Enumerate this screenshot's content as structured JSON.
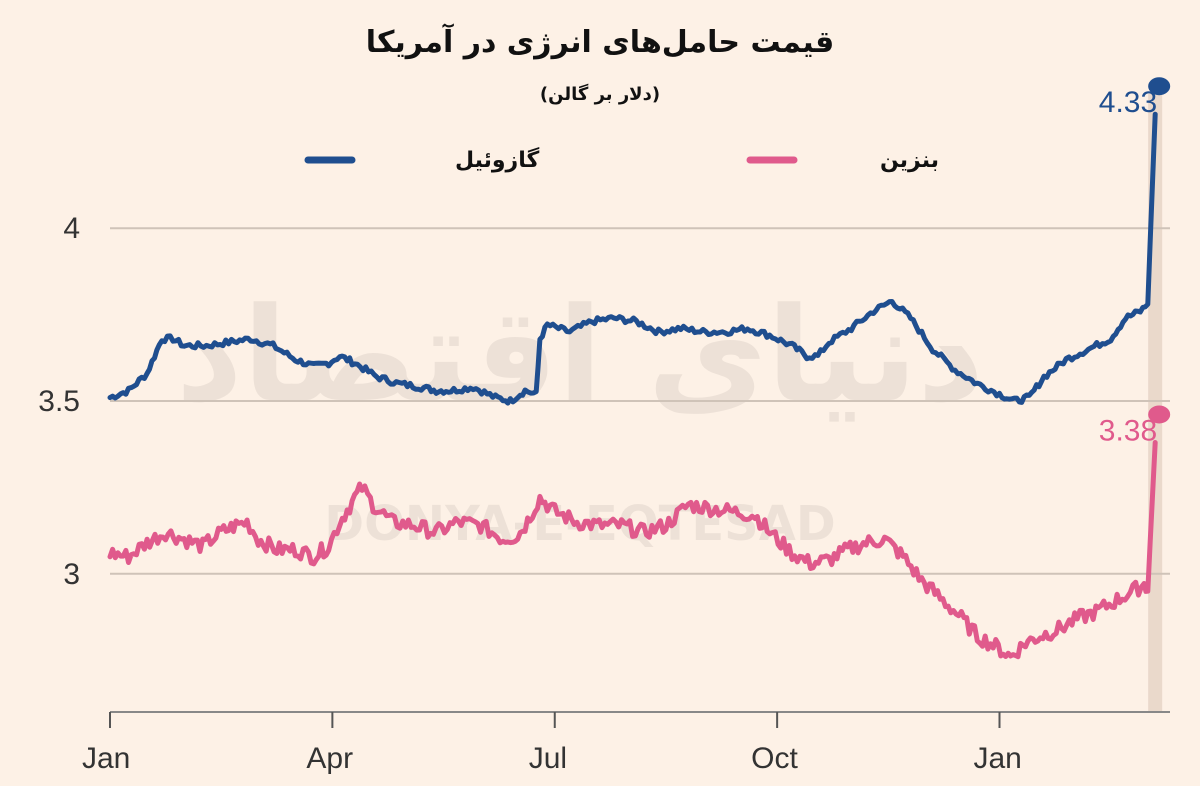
{
  "chart_data": {
    "type": "line",
    "title": "قیمت حامل‌های انرژی در آمریکا",
    "subtitle": "(دلار بر گالن)",
    "ylim": [
      2.6,
      4.4
    ],
    "y_ticks": [
      {
        "value": 3,
        "label": "3"
      },
      {
        "value": 3.5,
        "label": "3.5"
      },
      {
        "value": 4,
        "label": "4"
      }
    ],
    "x_ticks": [
      {
        "value": 0,
        "label": "Jan"
      },
      {
        "value": 3,
        "label": "Apr"
      },
      {
        "value": 6,
        "label": "Jul"
      },
      {
        "value": 9,
        "label": "Oct"
      },
      {
        "value": 12,
        "label": "Jan"
      }
    ],
    "xlim": [
      0,
      14.3
    ],
    "highlight_x": 14.1,
    "legend_position": "top",
    "grid": true,
    "series": [
      {
        "name": "گازوئیل",
        "color": "#1f4e8f",
        "end_label": "4.33",
        "points": [
          [
            0.0,
            3.51
          ],
          [
            0.25,
            3.53
          ],
          [
            0.5,
            3.58
          ],
          [
            0.7,
            3.68
          ],
          [
            0.85,
            3.68
          ],
          [
            1.0,
            3.66
          ],
          [
            1.3,
            3.66
          ],
          [
            1.6,
            3.67
          ],
          [
            1.9,
            3.68
          ],
          [
            2.2,
            3.66
          ],
          [
            2.5,
            3.62
          ],
          [
            2.75,
            3.6
          ],
          [
            2.95,
            3.61
          ],
          [
            3.1,
            3.63
          ],
          [
            3.3,
            3.61
          ],
          [
            3.6,
            3.57
          ],
          [
            3.9,
            3.55
          ],
          [
            4.2,
            3.54
          ],
          [
            4.4,
            3.53
          ],
          [
            4.6,
            3.53
          ],
          [
            4.9,
            3.54
          ],
          [
            5.2,
            3.51
          ],
          [
            5.4,
            3.5
          ],
          [
            5.6,
            3.53
          ],
          [
            5.75,
            3.52
          ],
          [
            5.8,
            3.68
          ],
          [
            5.9,
            3.72
          ],
          [
            6.2,
            3.7
          ],
          [
            6.5,
            3.73
          ],
          [
            6.8,
            3.74
          ],
          [
            7.1,
            3.73
          ],
          [
            7.4,
            3.7
          ],
          [
            7.7,
            3.71
          ],
          [
            8.0,
            3.7
          ],
          [
            8.3,
            3.7
          ],
          [
            8.6,
            3.71
          ],
          [
            8.9,
            3.69
          ],
          [
            9.2,
            3.66
          ],
          [
            9.4,
            3.63
          ],
          [
            9.55,
            3.63
          ],
          [
            9.7,
            3.67
          ],
          [
            10.0,
            3.71
          ],
          [
            10.3,
            3.76
          ],
          [
            10.55,
            3.79
          ],
          [
            10.8,
            3.74
          ],
          [
            11.1,
            3.65
          ],
          [
            11.4,
            3.59
          ],
          [
            11.7,
            3.55
          ],
          [
            12.0,
            3.52
          ],
          [
            12.2,
            3.5
          ],
          [
            12.4,
            3.51
          ],
          [
            12.6,
            3.57
          ],
          [
            12.9,
            3.62
          ],
          [
            13.2,
            3.65
          ],
          [
            13.5,
            3.68
          ],
          [
            13.7,
            3.74
          ],
          [
            13.9,
            3.76
          ],
          [
            14.0,
            3.78
          ],
          [
            14.1,
            4.33
          ]
        ]
      },
      {
        "name": "بنزین",
        "color": "#e05a8c",
        "end_label": "3.38",
        "points": [
          [
            0.0,
            3.06
          ],
          [
            0.25,
            3.05
          ],
          [
            0.5,
            3.09
          ],
          [
            0.75,
            3.12
          ],
          [
            1.0,
            3.1
          ],
          [
            1.25,
            3.08
          ],
          [
            1.5,
            3.12
          ],
          [
            1.7,
            3.14
          ],
          [
            1.85,
            3.15
          ],
          [
            2.0,
            3.1
          ],
          [
            2.25,
            3.07
          ],
          [
            2.5,
            3.07
          ],
          [
            2.75,
            3.05
          ],
          [
            2.95,
            3.08
          ],
          [
            3.1,
            3.15
          ],
          [
            3.3,
            3.22
          ],
          [
            3.4,
            3.25
          ],
          [
            3.55,
            3.2
          ],
          [
            3.8,
            3.15
          ],
          [
            4.1,
            3.14
          ],
          [
            4.4,
            3.12
          ],
          [
            4.7,
            3.15
          ],
          [
            5.0,
            3.14
          ],
          [
            5.3,
            3.1
          ],
          [
            5.5,
            3.11
          ],
          [
            5.6,
            3.14
          ],
          [
            5.8,
            3.22
          ],
          [
            6.0,
            3.18
          ],
          [
            6.3,
            3.15
          ],
          [
            6.6,
            3.14
          ],
          [
            6.9,
            3.14
          ],
          [
            7.2,
            3.12
          ],
          [
            7.5,
            3.14
          ],
          [
            7.8,
            3.2
          ],
          [
            8.1,
            3.19
          ],
          [
            8.4,
            3.18
          ],
          [
            8.7,
            3.17
          ],
          [
            8.9,
            3.12
          ],
          [
            9.2,
            3.06
          ],
          [
            9.45,
            3.03
          ],
          [
            9.7,
            3.04
          ],
          [
            9.95,
            3.07
          ],
          [
            10.2,
            3.09
          ],
          [
            10.45,
            3.1
          ],
          [
            10.7,
            3.05
          ],
          [
            10.95,
            2.98
          ],
          [
            11.2,
            2.93
          ],
          [
            11.45,
            2.88
          ],
          [
            11.7,
            2.82
          ],
          [
            11.95,
            2.79
          ],
          [
            12.15,
            2.76
          ],
          [
            12.35,
            2.8
          ],
          [
            12.55,
            2.82
          ],
          [
            12.8,
            2.84
          ],
          [
            13.05,
            2.87
          ],
          [
            13.3,
            2.89
          ],
          [
            13.55,
            2.92
          ],
          [
            13.8,
            2.95
          ],
          [
            13.95,
            2.97
          ],
          [
            14.0,
            2.95
          ],
          [
            14.1,
            3.38
          ]
        ]
      }
    ]
  },
  "watermark": {
    "persian": "دنیای اقتصاد",
    "latin": "DONYA-E-EQTESAD"
  }
}
